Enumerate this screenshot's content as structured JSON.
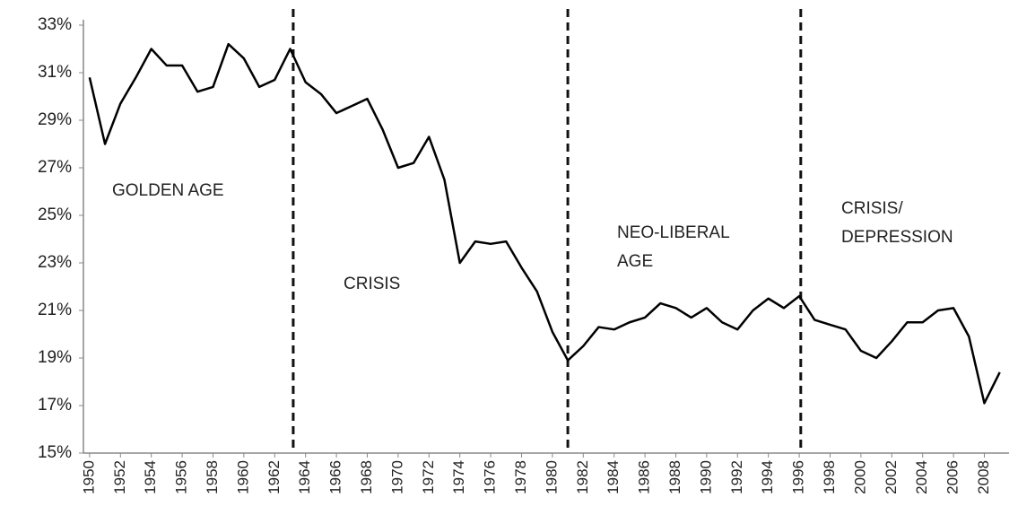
{
  "chart_data": {
    "type": "line",
    "x": [
      1950,
      1951,
      1952,
      1953,
      1954,
      1955,
      1956,
      1957,
      1958,
      1959,
      1960,
      1961,
      1962,
      1963,
      1964,
      1965,
      1966,
      1967,
      1968,
      1969,
      1970,
      1971,
      1972,
      1973,
      1974,
      1975,
      1976,
      1977,
      1978,
      1979,
      1980,
      1981,
      1982,
      1983,
      1984,
      1985,
      1986,
      1987,
      1988,
      1989,
      1990,
      1991,
      1992,
      1993,
      1994,
      1995,
      1996,
      1997,
      1998,
      1999,
      2000,
      2001,
      2002,
      2003,
      2004,
      2005,
      2006,
      2007,
      2008,
      2009
    ],
    "series": [
      {
        "color": "#000000",
        "values": [
          30.8,
          28.0,
          29.7,
          30.8,
          32.0,
          31.3,
          31.3,
          30.2,
          30.4,
          32.2,
          31.6,
          30.4,
          30.7,
          32.0,
          30.6,
          30.1,
          29.3,
          29.6,
          29.9,
          28.6,
          27.0,
          27.2,
          28.3,
          26.5,
          23.0,
          23.9,
          23.8,
          23.9,
          22.8,
          21.8,
          20.1,
          18.9,
          19.5,
          20.3,
          20.2,
          20.5,
          20.7,
          21.3,
          21.1,
          20.7,
          21.1,
          20.5,
          20.2,
          21.0,
          21.5,
          21.1,
          21.6,
          20.6,
          20.4,
          20.2,
          19.3,
          19.0,
          19.7,
          20.5,
          20.5,
          21.0,
          21.1,
          19.9,
          17.1,
          18.4
        ]
      }
    ],
    "xlim": [
      1949.6,
      2009.6
    ],
    "xticks": [
      1950,
      1952,
      1954,
      1956,
      1958,
      1960,
      1962,
      1964,
      1966,
      1968,
      1970,
      1972,
      1974,
      1976,
      1978,
      1980,
      1982,
      1984,
      1986,
      1988,
      1990,
      1992,
      1994,
      1996,
      1998,
      2000,
      2002,
      2004,
      2006,
      2008
    ],
    "ylim": [
      15,
      33
    ],
    "yticks": [
      {
        "value": 15,
        "label": "15%"
      },
      {
        "value": 17,
        "label": "17%"
      },
      {
        "value": 19,
        "label": "19%"
      },
      {
        "value": 21,
        "label": "21%"
      },
      {
        "value": 23,
        "label": "23%"
      },
      {
        "value": 25,
        "label": "25%"
      },
      {
        "value": 27,
        "label": "27%"
      },
      {
        "value": 29,
        "label": "29%"
      },
      {
        "value": 31,
        "label": "31%"
      },
      {
        "value": 33,
        "label": "33%"
      }
    ],
    "dividers": [
      1963.2,
      1981,
      1996.1
    ],
    "annotations": [
      [
        "GOLDEN AGE"
      ],
      [
        "CRISIS"
      ],
      [
        "NEO-LIBERAL",
        "AGE"
      ],
      [
        "CRISIS/",
        "DEPRESSION"
      ]
    ],
    "grid": false
  }
}
